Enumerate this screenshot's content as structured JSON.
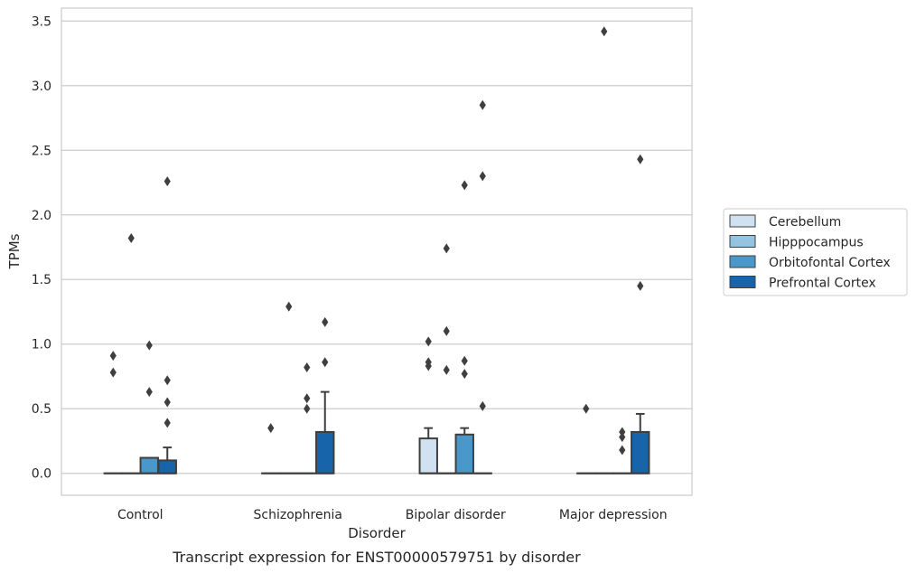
{
  "chart_data": {
    "type": "box",
    "caption": "Transcript expression for ENST00000579751 by disorder",
    "xlabel": "Disorder",
    "ylabel": "TPMs",
    "ylim": [
      -0.17,
      3.6
    ],
    "yticks": [
      "0.0",
      "0.5",
      "1.0",
      "1.5",
      "2.0",
      "2.5",
      "3.0",
      "3.5"
    ],
    "ytick_values": [
      0,
      0.5,
      1.0,
      1.5,
      2.0,
      2.5,
      3.0,
      3.5
    ],
    "categories": [
      "Control",
      "Schizophrenia",
      "Bipolar disorder",
      "Major depression"
    ],
    "grid": "horizontal",
    "legend_position": "right",
    "series": [
      {
        "name": "Cerebellum",
        "color": "#d0e1f2",
        "boxes": [
          {
            "q1": 0,
            "median": 0,
            "q3": 0,
            "whislo": 0,
            "whishi": 0,
            "fliers": [
              0.91,
              0.78
            ]
          },
          {
            "q1": 0,
            "median": 0,
            "q3": 0,
            "whislo": 0,
            "whishi": 0,
            "fliers": [
              0.35
            ]
          },
          {
            "q1": 0,
            "median": 0,
            "q3": 0.27,
            "whislo": 0,
            "whishi": 0.35,
            "fliers": [
              1.02,
              0.86,
              0.83
            ]
          },
          {
            "q1": 0,
            "median": 0,
            "q3": 0,
            "whislo": 0,
            "whishi": 0,
            "fliers": [
              0.5
            ]
          }
        ]
      },
      {
        "name": "Hipppocampus",
        "color": "#94c4df",
        "boxes": [
          {
            "q1": 0,
            "median": 0,
            "q3": 0,
            "whislo": 0,
            "whishi": 0,
            "fliers": [
              1.82
            ]
          },
          {
            "q1": 0,
            "median": 0,
            "q3": 0,
            "whislo": 0,
            "whishi": 0,
            "fliers": [
              1.29
            ]
          },
          {
            "q1": 0,
            "median": 0,
            "q3": 0,
            "whislo": 0,
            "whishi": 0,
            "fliers": [
              1.74,
              1.1,
              0.8
            ]
          },
          {
            "q1": 0,
            "median": 0,
            "q3": 0,
            "whislo": 0,
            "whishi": 0,
            "fliers": [
              3.42
            ]
          }
        ]
      },
      {
        "name": "Orbitofontal Cortex",
        "color": "#4a98c9",
        "boxes": [
          {
            "q1": 0,
            "median": 0,
            "q3": 0.12,
            "whislo": 0,
            "whishi": 0.12,
            "fliers": [
              0.99,
              0.63
            ]
          },
          {
            "q1": 0,
            "median": 0,
            "q3": 0,
            "whislo": 0,
            "whishi": 0,
            "fliers": [
              0.82,
              0.58,
              0.5
            ]
          },
          {
            "q1": 0,
            "median": 0,
            "q3": 0.3,
            "whislo": 0,
            "whishi": 0.35,
            "fliers": [
              2.23,
              0.87,
              0.77
            ]
          },
          {
            "q1": 0,
            "median": 0,
            "q3": 0,
            "whislo": 0,
            "whishi": 0,
            "fliers": [
              0.32,
              0.28,
              0.18
            ]
          }
        ]
      },
      {
        "name": "Prefrontal Cortex",
        "color": "#1764ab",
        "boxes": [
          {
            "q1": 0,
            "median": 0,
            "q3": 0.1,
            "whislo": 0,
            "whishi": 0.2,
            "fliers": [
              2.26,
              0.72,
              0.55,
              0.39
            ]
          },
          {
            "q1": 0,
            "median": 0,
            "q3": 0.32,
            "whislo": 0,
            "whishi": 0.63,
            "fliers": [
              1.17,
              0.86
            ]
          },
          {
            "q1": 0,
            "median": 0,
            "q3": 0,
            "whislo": 0,
            "whishi": 0,
            "fliers": [
              2.85,
              2.3,
              0.52
            ]
          },
          {
            "q1": 0,
            "median": 0,
            "q3": 0.32,
            "whislo": 0,
            "whishi": 0.46,
            "fliers": [
              2.43,
              1.45
            ]
          }
        ]
      }
    ]
  },
  "colors": {
    "grid": "#cccccc",
    "axes_edge": "#cccccc",
    "box_edge": "#3f3f3f",
    "flier": "#3f3f3f"
  }
}
